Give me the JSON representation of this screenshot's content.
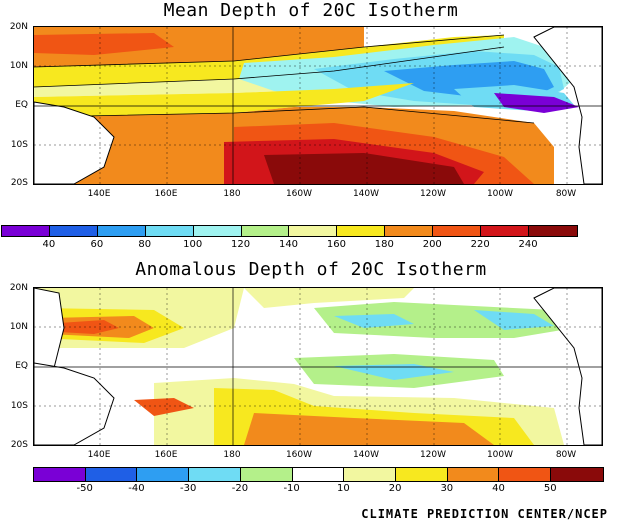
{
  "map1": {
    "title": "Mean Depth of 20C Isotherm",
    "colorbar_labels": [
      "40",
      "60",
      "80",
      "100",
      "120",
      "140",
      "160",
      "180",
      "200",
      "220",
      "240"
    ],
    "colorbar_colors": [
      "#7a00d6",
      "#1f5fe6",
      "#2e9ef2",
      "#6fdcf4",
      "#9ff3f0",
      "#b4f08a",
      "#f2f7a0",
      "#f7e81f",
      "#f28a1c",
      "#f05514",
      "#d2151a",
      "#8a0a0a"
    ]
  },
  "map2": {
    "title": "Anomalous Depth of 20C Isotherm",
    "colorbar_labels": [
      "-50",
      "-40",
      "-30",
      "-20",
      "-10",
      "10",
      "20",
      "30",
      "40",
      "50"
    ],
    "colorbar_colors": [
      "#7a00d6",
      "#1f5fe6",
      "#2e9ef2",
      "#6fdcf4",
      "#b4f08a",
      "#ffffff",
      "#f2f7a0",
      "#f7e81f",
      "#f28a1c",
      "#f05514",
      "#8a0a0a"
    ]
  },
  "lat_labels": [
    "20N",
    "10N",
    "EQ",
    "10S",
    "20S"
  ],
  "lon_labels": [
    "140E",
    "160E",
    "180",
    "160W",
    "140W",
    "120W",
    "100W",
    "80W"
  ],
  "credit": "CLIMATE PREDICTION CENTER/NCEP"
}
